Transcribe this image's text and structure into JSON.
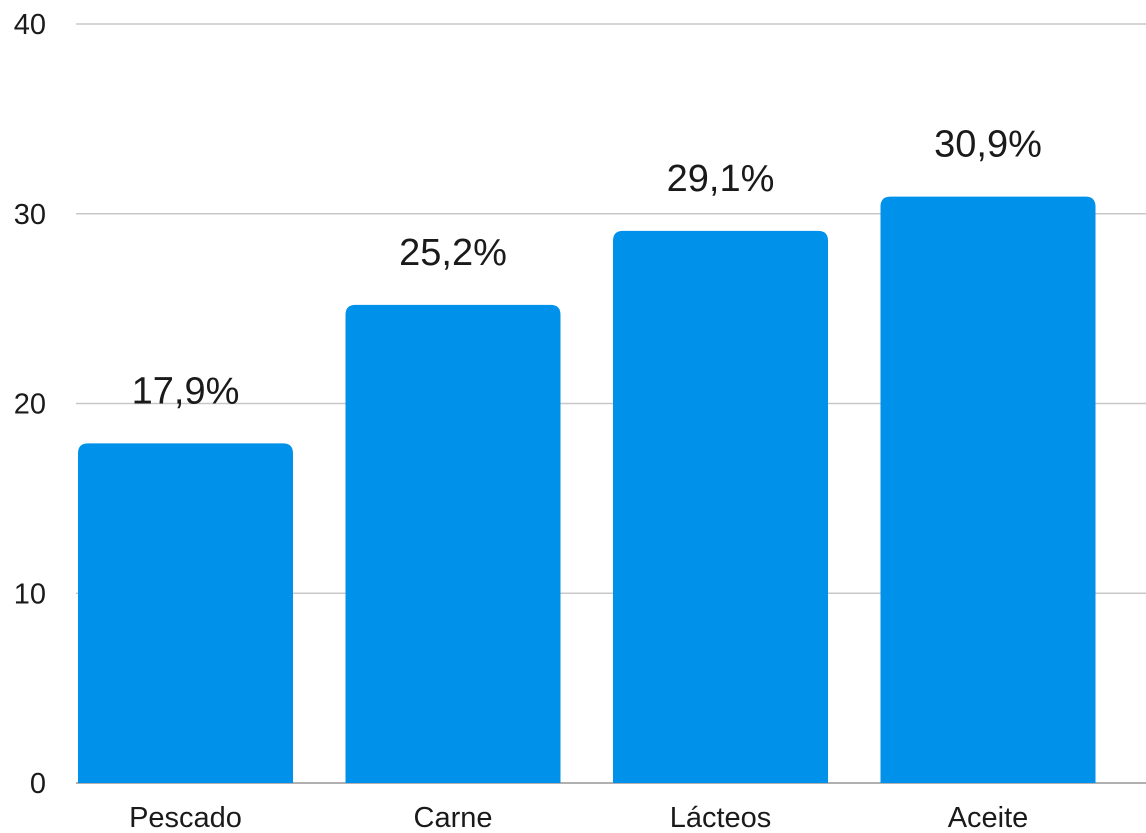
{
  "chart_data": {
    "type": "bar",
    "title": "",
    "xlabel": "",
    "ylabel": "",
    "categories": [
      "Pescado",
      "Carne",
      "Lácteos",
      "Aceite"
    ],
    "series": [
      {
        "values": [
          17.9,
          25.2,
          29.1,
          30.9
        ],
        "data_labels": [
          "17,9%",
          "25,2%",
          "29,1%",
          "30,9%"
        ]
      }
    ],
    "ylim": [
      0,
      40
    ],
    "yticks": [
      0,
      10,
      20,
      30,
      40
    ],
    "ytick_labels": [
      "0",
      "10",
      "20",
      "30",
      "40"
    ],
    "grid": true,
    "legend": "none",
    "colors": {
      "bar": "#0091EA",
      "grid": "#C8C8C8",
      "text": "#1A1A1A"
    }
  }
}
